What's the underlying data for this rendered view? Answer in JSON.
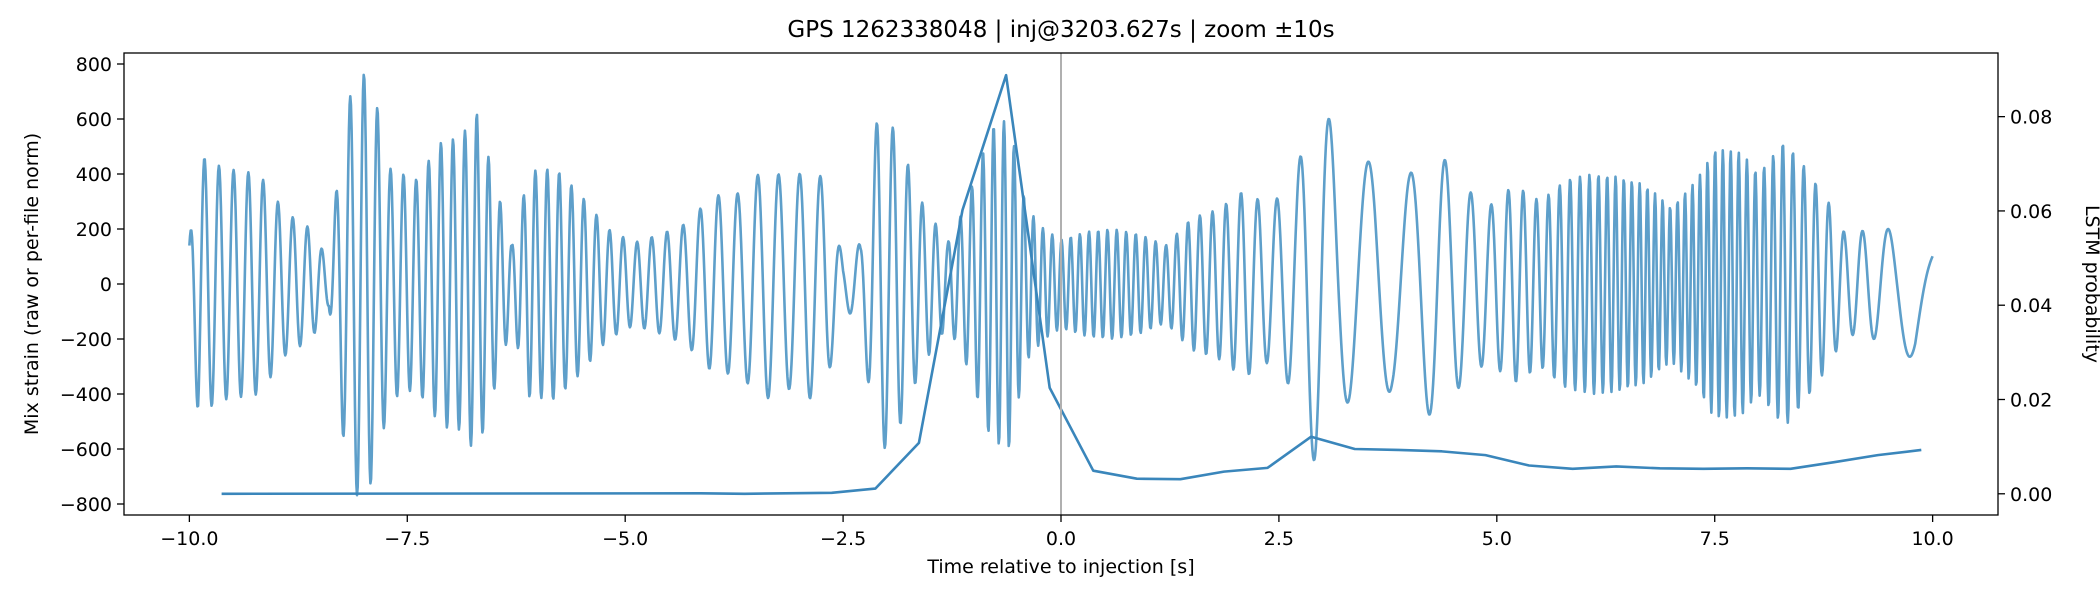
{
  "chart_data": {
    "type": "line",
    "title": "GPS 1262338048 | inj@3203.627s | zoom ±10s",
    "xlabel": "Time relative to injection [s]",
    "ylabel": "Mix strain (raw or per-file norm)",
    "y2label": "LSTM probability",
    "xlim": [
      -10.75,
      10.75
    ],
    "ylim": [
      -840,
      840
    ],
    "y2lim": [
      -0.0045,
      0.0935
    ],
    "x_ticks": [
      -10.0,
      -7.5,
      -5.0,
      -2.5,
      0.0,
      2.5,
      5.0,
      7.5,
      10.0
    ],
    "x_tick_labels": [
      "−10.0",
      "−7.5",
      "−5.0",
      "−2.5",
      "0.0",
      "2.5",
      "5.0",
      "7.5",
      "10.0"
    ],
    "y_ticks": [
      -800,
      -600,
      -400,
      -200,
      0,
      200,
      400,
      600,
      800
    ],
    "y_tick_labels": [
      "−800",
      "−600",
      "−400",
      "−200",
      "0",
      "200",
      "400",
      "600",
      "800"
    ],
    "y2_ticks": [
      0.0,
      0.02,
      0.04,
      0.06,
      0.08
    ],
    "y2_tick_labels": [
      "0.00",
      "0.02",
      "0.04",
      "0.06",
      "0.08"
    ],
    "vline_x": 0.0,
    "grid": false,
    "colors": {
      "strain": "#5e9fca",
      "prob": "#3a86bb",
      "vline": "#b0b0b0"
    },
    "strain_envelope": [
      [
        -10.0,
        150
      ],
      [
        -9.9,
        470
      ],
      [
        -9.6,
        420
      ],
      [
        -9.2,
        400
      ],
      [
        -8.9,
        260
      ],
      [
        -8.6,
        200
      ],
      [
        -8.4,
        80
      ],
      [
        -8.25,
        530
      ],
      [
        -8.1,
        770
      ],
      [
        -7.95,
        760
      ],
      [
        -7.85,
        650
      ],
      [
        -7.7,
        420
      ],
      [
        -7.4,
        380
      ],
      [
        -7.1,
        520
      ],
      [
        -6.9,
        530
      ],
      [
        -6.7,
        620
      ],
      [
        -6.5,
        380
      ],
      [
        -6.3,
        140
      ],
      [
        -6.1,
        410
      ],
      [
        -5.8,
        420
      ],
      [
        -5.5,
        320
      ],
      [
        -5.2,
        200
      ],
      [
        -4.9,
        150
      ],
      [
        -4.6,
        180
      ],
      [
        -4.3,
        220
      ],
      [
        -4.0,
        320
      ],
      [
        -3.7,
        330
      ],
      [
        -3.4,
        420
      ],
      [
        -3.1,
        380
      ],
      [
        -2.9,
        420
      ],
      [
        -2.7,
        380
      ],
      [
        -2.5,
        80
      ],
      [
        -2.3,
        150
      ],
      [
        -2.1,
        620
      ],
      [
        -1.9,
        560
      ],
      [
        -1.6,
        300
      ],
      [
        -1.3,
        150
      ],
      [
        -1.1,
        280
      ],
      [
        -0.8,
        570
      ],
      [
        -0.6,
        600
      ],
      [
        -0.4,
        280
      ],
      [
        -0.2,
        200
      ],
      [
        0.0,
        160
      ],
      [
        0.3,
        190
      ],
      [
        0.6,
        200
      ],
      [
        0.9,
        180
      ],
      [
        1.2,
        140
      ],
      [
        1.5,
        240
      ],
      [
        1.8,
        270
      ],
      [
        2.1,
        340
      ],
      [
        2.4,
        280
      ],
      [
        2.7,
        400
      ],
      [
        2.85,
        610
      ],
      [
        3.0,
        700
      ],
      [
        3.2,
        440
      ],
      [
        3.4,
        420
      ],
      [
        3.6,
        460
      ],
      [
        3.8,
        380
      ],
      [
        4.0,
        400
      ],
      [
        4.3,
        500
      ],
      [
        4.6,
        360
      ],
      [
        4.9,
        280
      ],
      [
        5.2,
        360
      ],
      [
        5.5,
        300
      ],
      [
        5.8,
        380
      ],
      [
        6.1,
        400
      ],
      [
        6.4,
        390
      ],
      [
        6.7,
        360
      ],
      [
        7.0,
        280
      ],
      [
        7.3,
        380
      ],
      [
        7.5,
        490
      ],
      [
        7.8,
        480
      ],
      [
        8.0,
        400
      ],
      [
        8.3,
        520
      ],
      [
        8.5,
        440
      ],
      [
        8.8,
        300
      ],
      [
        9.0,
        180
      ],
      [
        9.3,
        200
      ],
      [
        9.6,
        200
      ],
      [
        9.8,
        300
      ],
      [
        10.0,
        220
      ]
    ],
    "strain_series": {
      "name": "strain",
      "x_start": -10.0,
      "x_end": 10.0,
      "samples": 2600,
      "base_frequency_hz": 6.3
    },
    "prob_series": {
      "name": "LSTM probability",
      "x": [
        -9.63,
        -4.13,
        -3.63,
        -2.63,
        -2.13,
        -1.63,
        -1.13,
        -0.63,
        -0.13,
        0.37,
        0.87,
        1.37,
        1.87,
        2.37,
        2.87,
        3.37,
        3.87,
        4.37,
        4.87,
        5.37,
        5.87,
        6.37,
        6.87,
        7.37,
        7.87,
        8.37,
        8.87,
        9.37,
        9.87
      ],
      "y": [
        0.0,
        0.0001,
        0.0,
        0.0002,
        0.0011,
        0.0108,
        0.0602,
        0.0888,
        0.0225,
        0.0049,
        0.0032,
        0.0031,
        0.0047,
        0.0055,
        0.0121,
        0.0095,
        0.0093,
        0.009,
        0.0082,
        0.006,
        0.0053,
        0.0058,
        0.0054,
        0.0053,
        0.0054,
        0.0053,
        0.0067,
        0.0082,
        0.0093
      ]
    }
  }
}
